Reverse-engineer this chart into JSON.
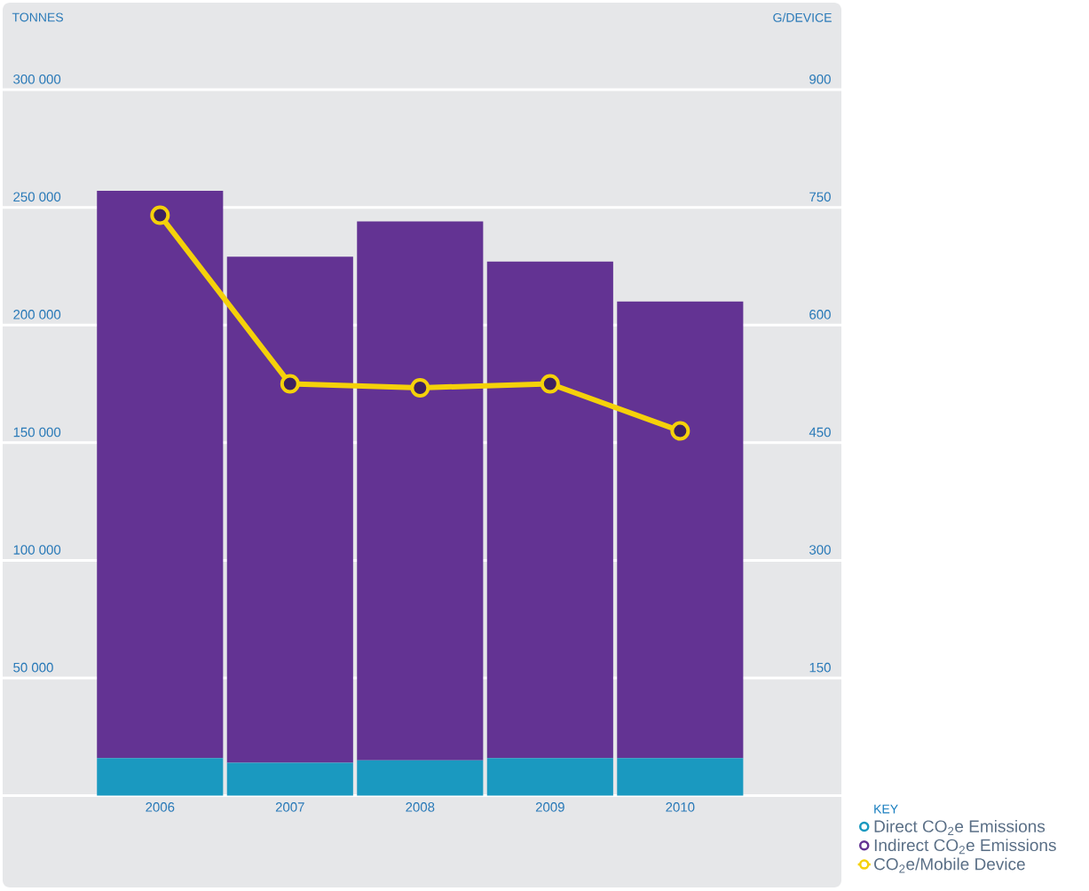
{
  "chart_data": {
    "type": "bar",
    "stacked": true,
    "categories": [
      "2006",
      "2007",
      "2008",
      "2009",
      "2010"
    ],
    "ylabel": "TONNES",
    "y2label": "G/DEVICE",
    "ylim": [
      -39000,
      337000
    ],
    "yticks": [
      {
        "value": 0,
        "label": null
      },
      {
        "value": 50000,
        "label": "50 000"
      },
      {
        "value": 100000,
        "label": "100 000"
      },
      {
        "value": 150000,
        "label": "150 000"
      },
      {
        "value": 200000,
        "label": "200 000"
      },
      {
        "value": 250000,
        "label": "250 000"
      },
      {
        "value": 300000,
        "label": "300 000"
      }
    ],
    "y2lim": [
      -117,
      1011
    ],
    "y2ticks": [
      150,
      300,
      450,
      600,
      750,
      900
    ],
    "grid": "y",
    "legend": "bottom right",
    "legend_title": "KEY",
    "series": [
      {
        "name": "Direct CO$_{2}$e Emissions",
        "color": "#1a99c0",
        "values": [
          16000,
          14000,
          15000,
          16000,
          16000
        ]
      },
      {
        "name": "Indirect CO$_{2}$e Emissions",
        "color": "#633393",
        "values": [
          241000,
          215000,
          229000,
          211000,
          194000
        ]
      },
      {
        "name": "CO$_{2}$e/Mobile Device",
        "type": "line",
        "axis": "y2",
        "color": "#f5d10a",
        "marker": "circle",
        "values": [
          740,
          525,
          520,
          525,
          465
        ]
      }
    ]
  }
}
